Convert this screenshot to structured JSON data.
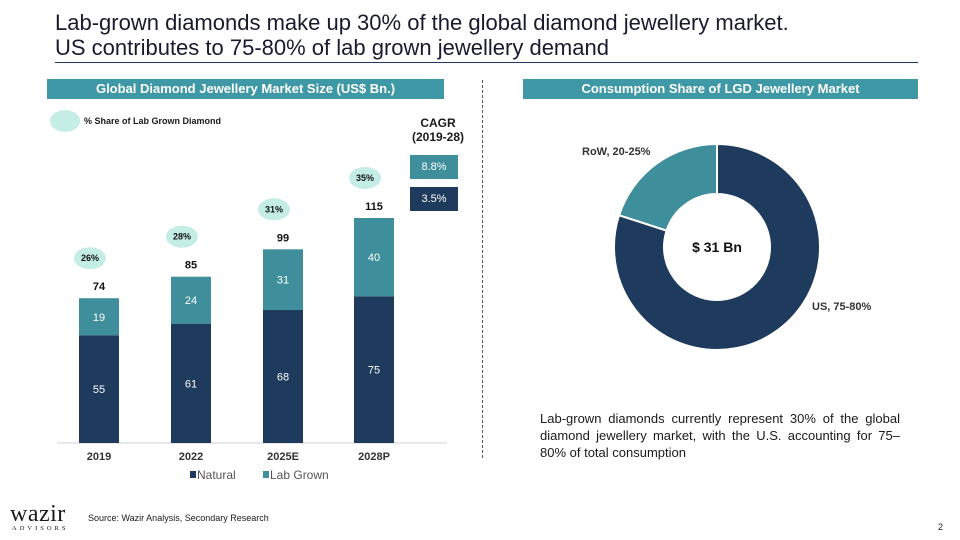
{
  "title": {
    "line1": "Lab-grown diamonds make up 30% of the global diamond jewellery market.",
    "line2": "US contributes to 75-80% of lab grown jewellery demand"
  },
  "bar_panel": {
    "header": "Global Diamond Jewellery Market Size (US$ Bn.)",
    "share_legend": "% Share of Lab Grown Diamond",
    "cagr_label_line1": "CAGR",
    "cagr_label_line2": "(2019-28)",
    "cagr_lab_grown": "8.8%",
    "cagr_natural": "3.5%"
  },
  "pie_panel": {
    "header": "Consumption Share of LGD Jewellery Market",
    "center_label": "$ 31 Bn",
    "summary": "Lab-grown diamonds currently represent 30% of the global diamond jewellery market, with the U.S. accounting for 75–80% of total consumption"
  },
  "chart_data": [
    {
      "type": "bar",
      "stacked": true,
      "categories": [
        "2019",
        "2022",
        "2025E",
        "2028P"
      ],
      "series": [
        {
          "name": "Natural",
          "values": [
            55,
            61,
            68,
            75
          ],
          "color": "#1e3a5c"
        },
        {
          "name": "Lab Grown",
          "values": [
            19,
            24,
            31,
            40
          ],
          "color": "#3e8f9b"
        }
      ],
      "totals": [
        "74",
        "85",
        "99",
        "115"
      ],
      "lab_grown_share": [
        "26%",
        "28%",
        "31%",
        "35%"
      ],
      "ylim": [
        0,
        115
      ],
      "legend_position": "bottom",
      "grid": false
    },
    {
      "type": "pie",
      "donut": true,
      "slices": [
        {
          "label": "US, 75-80%",
          "value": 80,
          "color": "#1e3a5c"
        },
        {
          "label": "RoW, 20-25%",
          "value": 20,
          "color": "#3e8f9b"
        }
      ]
    }
  ],
  "footer": {
    "logo_main": "wazir",
    "logo_sub": "ADVISORS",
    "source": "Source: Wazir Analysis, Secondary Research",
    "page_number": "2"
  },
  "colors": {
    "header_teal": "#3e98a5",
    "natural": "#1e3a5c",
    "lab_grown": "#3e8f9b",
    "share_bubble": "#c3ede5"
  }
}
